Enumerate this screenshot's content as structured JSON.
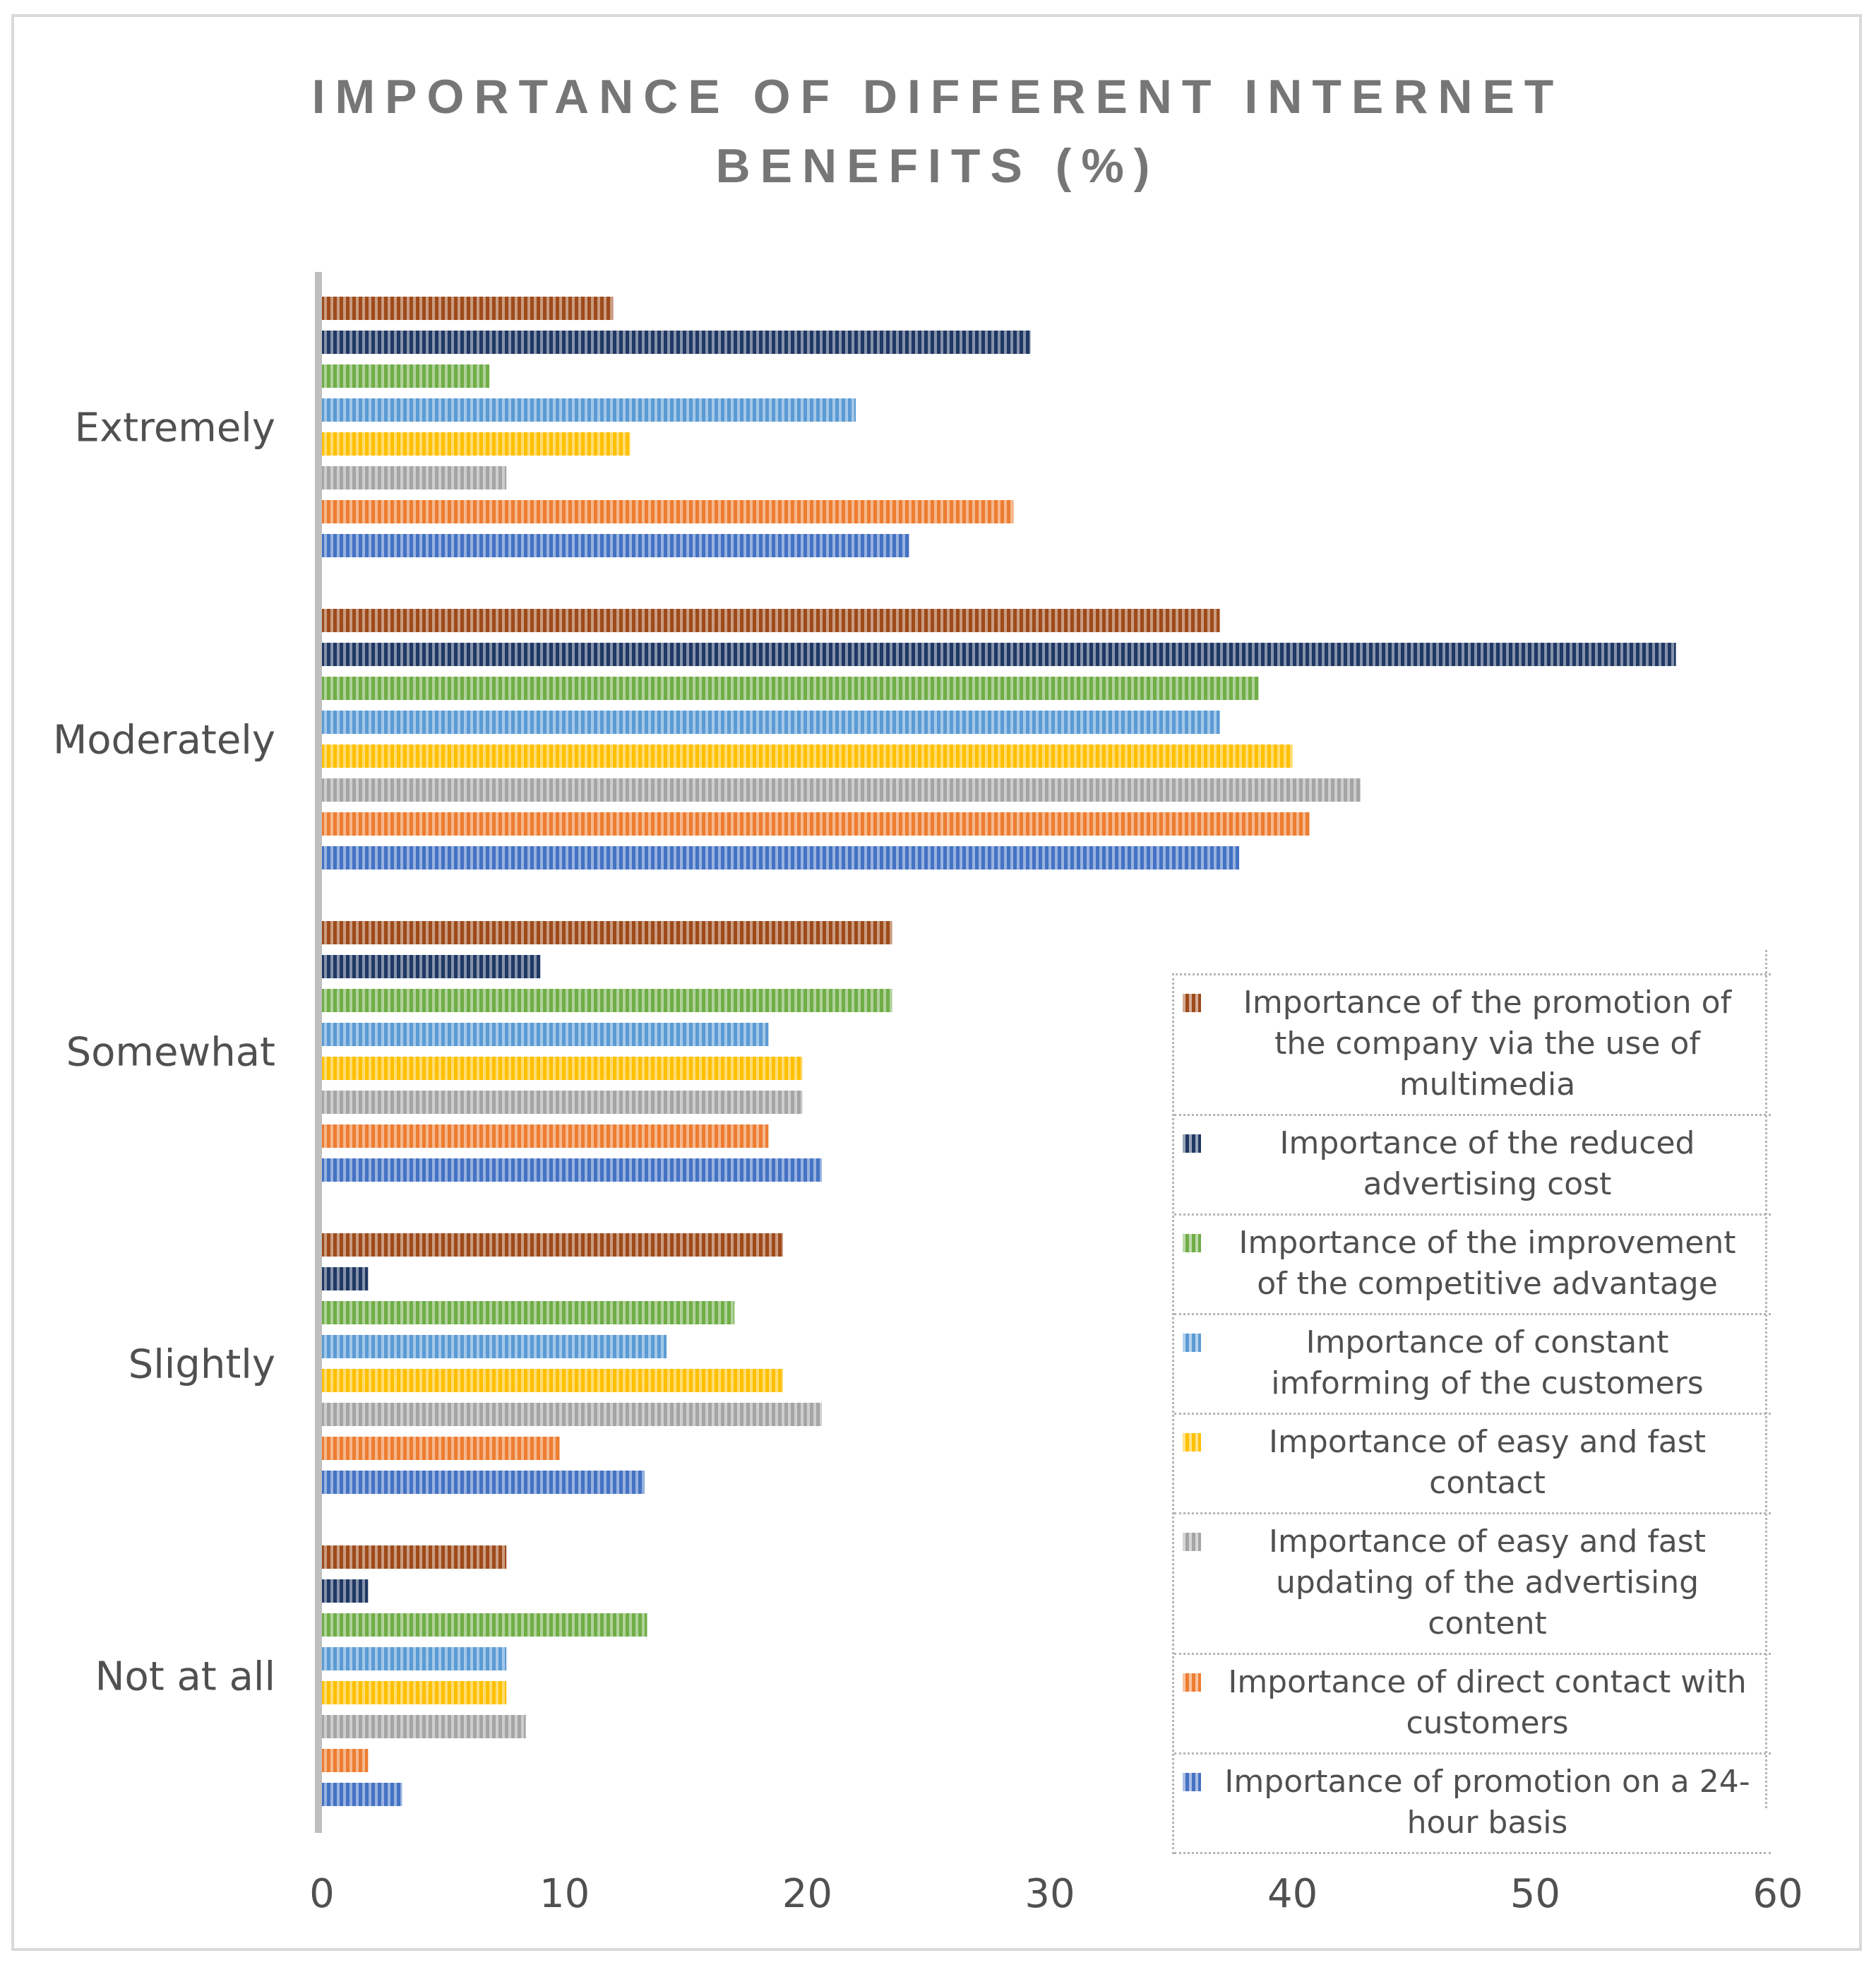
{
  "chart_data": {
    "type": "bar",
    "orientation": "horizontal",
    "title": "IMPORTANCE OF DIFFERENT INTERNET BENEFITS (%)",
    "title_lines": [
      "IMPORTANCE OF DIFFERENT INTERNET",
      "BENEFITS (%)"
    ],
    "xlabel": "",
    "ylabel": "",
    "xlim": [
      0,
      60
    ],
    "xticks": [
      "0",
      "10",
      "20",
      "30",
      "40",
      "50",
      "60"
    ],
    "grid": false,
    "legend_position": "bottom-right",
    "categories": [
      "Extremely",
      "Moderately",
      "Somewhat",
      "Slightly",
      "Not at all"
    ],
    "series": [
      {
        "name": "Importance of the promotion of the company via the use of multimedia",
        "legend_lines": [
          "Importance of the promotion of",
          "the company via the use of",
          "multimedia"
        ],
        "color": "#9e4a1a",
        "values": [
          12,
          37,
          23.5,
          19,
          7.6
        ]
      },
      {
        "name": "Importance of the reduced advertising cost",
        "legend_lines": [
          "Importance of the reduced",
          "advertising cost"
        ],
        "color": "#203864",
        "values": [
          29.2,
          55.8,
          9,
          1.9,
          1.9
        ]
      },
      {
        "name": "Importance of the improvement of the competitive advantage",
        "legend_lines": [
          "Importance of the improvement",
          "of the competitive advantage"
        ],
        "color": "#70ad47",
        "values": [
          6.9,
          38.6,
          23.5,
          17,
          13.4
        ]
      },
      {
        "name": "Importance of constant imforming of the customers",
        "legend_lines": [
          "Importance of constant",
          "imforming of the customers"
        ],
        "color": "#5b9bd5",
        "values": [
          22,
          37,
          18.4,
          14.2,
          7.6
        ]
      },
      {
        "name": "Importance of easy and fast contact",
        "legend_lines": [
          "Importance of easy and fast",
          "contact"
        ],
        "color": "#ffc000",
        "values": [
          12.7,
          40,
          19.8,
          19,
          7.6
        ]
      },
      {
        "name": "Importance of easy and fast updating of the advertising content",
        "legend_lines": [
          "Importance of easy and fast",
          "updating of the advertising",
          "content"
        ],
        "color": "#a5a5a5",
        "values": [
          7.6,
          42.8,
          19.8,
          20.6,
          8.4
        ]
      },
      {
        "name": "Importance of direct contact with customers",
        "legend_lines": [
          "Importance of direct contact with",
          "customers"
        ],
        "color": "#ed7d31",
        "values": [
          28.5,
          40.7,
          18.4,
          9.8,
          1.9
        ]
      },
      {
        "name": "Importance of promotion on a 24-hour basis",
        "legend_lines": [
          "Importance of promotion on a 24-",
          "hour basis"
        ],
        "color": "#4472c4",
        "values": [
          24.2,
          37.8,
          20.6,
          13.3,
          3.3
        ]
      }
    ]
  }
}
